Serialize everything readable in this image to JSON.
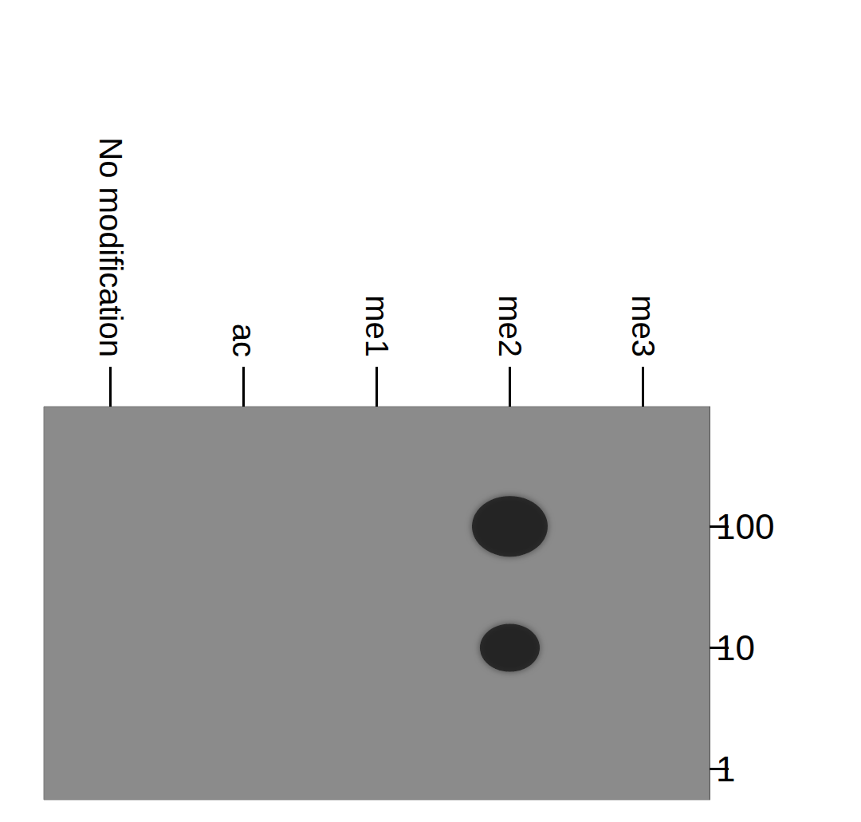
{
  "chart_data": {
    "type": "scatter",
    "categories": [
      "No modification",
      "ac",
      "me1",
      "me2",
      "me3"
    ],
    "points": [
      {
        "category": "me2",
        "value": 100
      },
      {
        "category": "me2",
        "value": 10
      }
    ],
    "color": "#161616",
    "log": "y",
    "ylim": [
      0.56,
      970
    ],
    "yticks": [
      1,
      10,
      100
    ],
    "grid": false
  }
}
